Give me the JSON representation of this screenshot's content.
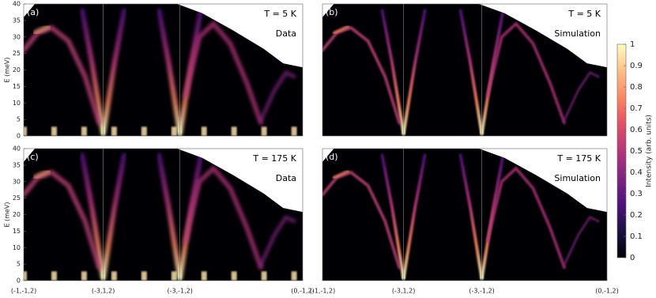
{
  "chart_data": [
    {
      "type": "heatmap",
      "label": "(a)",
      "temperature": "T = 5 K",
      "kind": "Data",
      "ylabel": "E (meV)",
      "ylim": [
        0,
        40
      ],
      "yticks": [
        0,
        5,
        10,
        15,
        20,
        25,
        30,
        35,
        40
      ]
    },
    {
      "type": "heatmap",
      "label": "(b)",
      "temperature": "T = 5 K",
      "kind": "Simulation"
    },
    {
      "type": "heatmap",
      "label": "(c)",
      "temperature": "T = 175 K",
      "kind": "Data",
      "ylabel": "E (meV)",
      "ylim": [
        0,
        40
      ],
      "yticks": [
        0,
        5,
        10,
        15,
        20,
        25,
        30,
        35,
        40
      ],
      "xticks": [
        "(-1,-1,2)",
        "(-3,1,2)",
        "(-3,-1,2)",
        "(0,-1,2)"
      ]
    },
    {
      "type": "heatmap",
      "label": "(d)",
      "temperature": "T = 175 K",
      "kind": "Simulation",
      "xticks": [
        "(-1,-1,2)",
        "(-3,1,2)",
        "(-3,-1,2)",
        "(0,-1,2)"
      ]
    }
  ],
  "colorbar": {
    "label": "Intensity (arb. units)",
    "lim": [
      0,
      1
    ],
    "ticks": [
      0,
      0.1,
      0.2,
      0.3,
      0.4,
      0.5,
      0.6,
      0.7,
      0.8,
      0.9,
      1
    ]
  }
}
